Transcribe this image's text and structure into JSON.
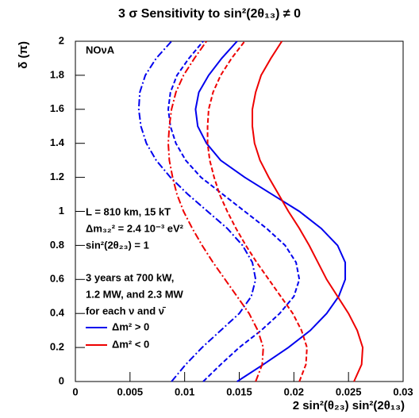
{
  "chart_data": {
    "type": "line",
    "title": "3 σ Sensitivity to sin²(2θ₁₃) ≠ 0",
    "x_label": "2 sin²(θ₂₃) sin²(2θ₁₃)",
    "y_label": "δ (π)",
    "xlim": [
      0,
      0.03
    ],
    "xticks": [
      0,
      0.005,
      0.01,
      0.015,
      0.02,
      0.025,
      0.03
    ],
    "ylim": [
      0,
      2
    ],
    "yticks": [
      0,
      0.2,
      0.4,
      0.6,
      0.8,
      1,
      1.2,
      1.4,
      1.6,
      1.8,
      2
    ],
    "y": [
      0,
      0.1,
      0.2,
      0.3,
      0.4,
      0.5,
      0.6,
      0.7,
      0.8,
      0.9,
      1,
      1.1,
      1.2,
      1.3,
      1.4,
      1.5,
      1.6,
      1.7,
      1.8,
      1.9,
      2
    ],
    "series": [
      {
        "color": "#0000ee",
        "dash": "solid",
        "values": [
          0.0148,
          0.0172,
          0.0195,
          0.0215,
          0.023,
          0.0241,
          0.0247,
          0.0247,
          0.024,
          0.0225,
          0.0205,
          0.018,
          0.0155,
          0.0133,
          0.012,
          0.0112,
          0.011,
          0.0113,
          0.0122,
          0.0134,
          0.0148
        ]
      },
      {
        "color": "#0000ee",
        "dash": "dashed",
        "values": [
          0.0117,
          0.0133,
          0.015,
          0.017,
          0.0187,
          0.02,
          0.0205,
          0.0202,
          0.0192,
          0.0175,
          0.0155,
          0.0135,
          0.0115,
          0.0101,
          0.0092,
          0.0087,
          0.0085,
          0.0087,
          0.0093,
          0.0104,
          0.0117
        ]
      },
      {
        "color": "#0000ee",
        "dash": "dashdot",
        "values": [
          0.0088,
          0.0101,
          0.0116,
          0.0133,
          0.015,
          0.0161,
          0.0165,
          0.0162,
          0.0153,
          0.0139,
          0.0121,
          0.0103,
          0.0087,
          0.0074,
          0.0065,
          0.006,
          0.0058,
          0.0059,
          0.0064,
          0.0074,
          0.0088
        ]
      },
      {
        "color": "#ee0000",
        "dash": "solid",
        "values": [
          0.0255,
          0.0262,
          0.0263,
          0.0258,
          0.025,
          0.024,
          0.023,
          0.0222,
          0.0214,
          0.0205,
          0.0195,
          0.0186,
          0.0177,
          0.0169,
          0.0164,
          0.0162,
          0.0162,
          0.0165,
          0.017,
          0.0179,
          0.0189
        ]
      },
      {
        "color": "#ee0000",
        "dash": "dashed",
        "values": [
          0.0205,
          0.0211,
          0.0212,
          0.0207,
          0.0199,
          0.0188,
          0.0177,
          0.0166,
          0.0156,
          0.0147,
          0.0139,
          0.0132,
          0.0127,
          0.0123,
          0.0121,
          0.0121,
          0.0122,
          0.0126,
          0.0133,
          0.0143,
          0.0155
        ]
      },
      {
        "color": "#ee0000",
        "dash": "dashdot",
        "values": [
          0.0165,
          0.0171,
          0.0172,
          0.0167,
          0.0159,
          0.0148,
          0.0137,
          0.0126,
          0.0116,
          0.0107,
          0.0099,
          0.0093,
          0.0089,
          0.0086,
          0.0085,
          0.0086,
          0.0088,
          0.0092,
          0.0099,
          0.0109,
          0.012
        ]
      }
    ],
    "legend": [
      {
        "label": "Δm² > 0",
        "color": "#0000ee"
      },
      {
        "label": "Δm² < 0",
        "color": "#ee0000"
      }
    ],
    "annotations": [
      "NOνA",
      "L = 810 km, 15 kT",
      "Δm₃₂² = 2.4 10⁻³ eV²",
      "sin²(2θ₂₃) = 1",
      "3 years at 700 kW,",
      "1.2 MW, and 2.3 MW",
      "for each ν and ν̄"
    ]
  }
}
